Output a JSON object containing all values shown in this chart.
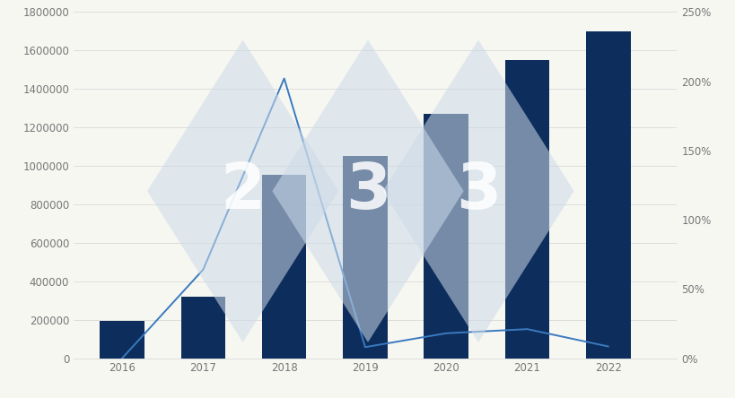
{
  "years": [
    2016,
    2017,
    2018,
    2019,
    2020,
    2021,
    2022
  ],
  "bar_values": [
    195000,
    320000,
    955000,
    1050000,
    1270000,
    1550000,
    1700000
  ],
  "line_values": [
    0.0,
    0.64,
    2.02,
    0.08,
    0.18,
    0.21,
    0.085
  ],
  "bar_color": "#0d2d5c",
  "line_color": "#3a7abf",
  "background_color": "#f7f7f2",
  "ylim_left": [
    0,
    1800000
  ],
  "ylim_right": [
    0,
    2.5
  ],
  "yticks_left": [
    0,
    200000,
    400000,
    600000,
    800000,
    1000000,
    1200000,
    1400000,
    1600000,
    1800000
  ],
  "yticks_right": [
    0.0,
    0.5,
    1.0,
    1.5,
    2.0,
    2.5
  ],
  "ytick_labels_right": [
    "0%",
    "50%",
    "100%",
    "150%",
    "200%",
    "250%"
  ],
  "watermark_digits": [
    "2",
    "3",
    "3"
  ],
  "watermark_color": "#ccdae8",
  "watermark_alpha": 0.55,
  "watermark_text_color": "#ffffff",
  "watermark_text_alpha": 0.85
}
